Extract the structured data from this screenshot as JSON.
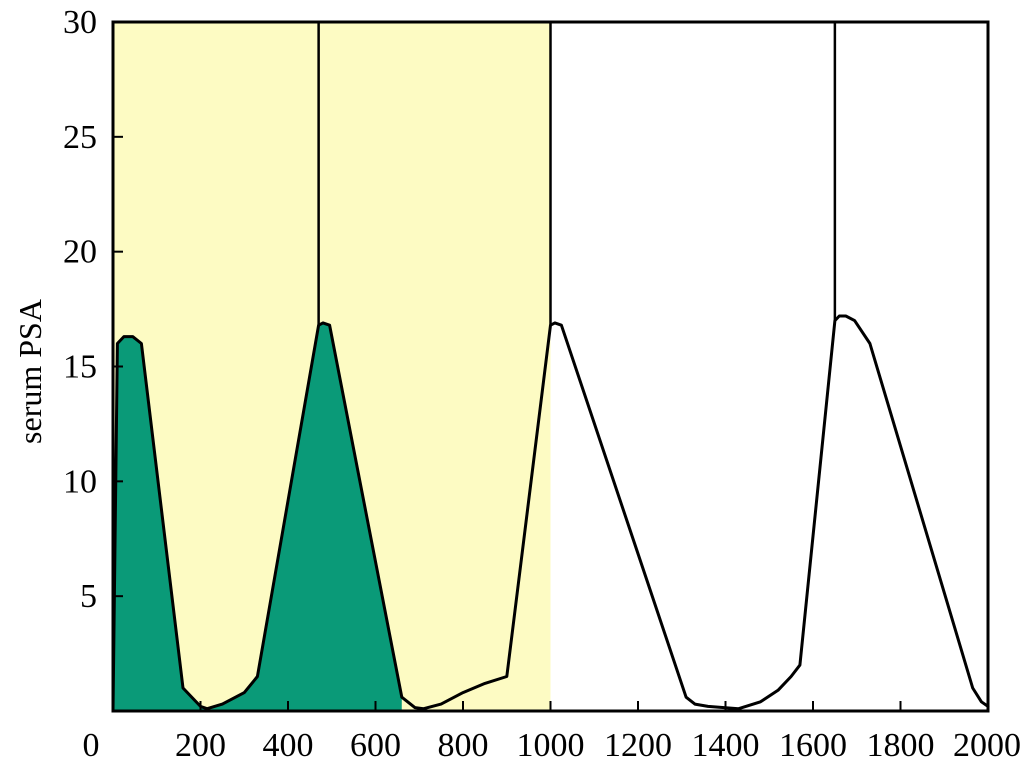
{
  "chart_data": {
    "type": "line",
    "title": "",
    "xlabel": "",
    "ylabel": "serum PSA",
    "xlim": [
      0,
      2000
    ],
    "ylim": [
      0,
      30
    ],
    "x_ticks": [
      0,
      200,
      400,
      600,
      800,
      1000,
      1200,
      1400,
      1600,
      1800,
      2000
    ],
    "y_ticks": [
      5,
      10,
      15,
      20,
      25,
      30
    ],
    "shaded_region": {
      "x_start": 0,
      "x_end": 1000,
      "color": "#fdfbc3"
    },
    "vertical_lines": [
      470,
      1000,
      1650
    ],
    "series": [
      {
        "line_color": "#000000",
        "fill_color": "#0a9a78",
        "fill_x_end": 660,
        "x": [
          0,
          10,
          25,
          45,
          65,
          160,
          200,
          215,
          250,
          300,
          330,
          470,
          480,
          495,
          660,
          690,
          710,
          750,
          800,
          850,
          900,
          1000,
          1010,
          1025,
          1310,
          1330,
          1360,
          1430,
          1480,
          1520,
          1550,
          1570,
          1650,
          1660,
          1675,
          1695,
          1730,
          1965,
          1985,
          2000
        ],
        "y": [
          0,
          16.0,
          16.3,
          16.3,
          16.0,
          1.0,
          0.2,
          0.1,
          0.3,
          0.8,
          1.5,
          16.8,
          16.9,
          16.8,
          0.6,
          0.15,
          0.1,
          0.3,
          0.8,
          1.2,
          1.5,
          16.8,
          16.9,
          16.8,
          0.6,
          0.3,
          0.2,
          0.1,
          0.4,
          0.9,
          1.5,
          2.0,
          17.0,
          17.2,
          17.2,
          17.0,
          16.0,
          1.0,
          0.4,
          0.2
        ]
      }
    ]
  }
}
